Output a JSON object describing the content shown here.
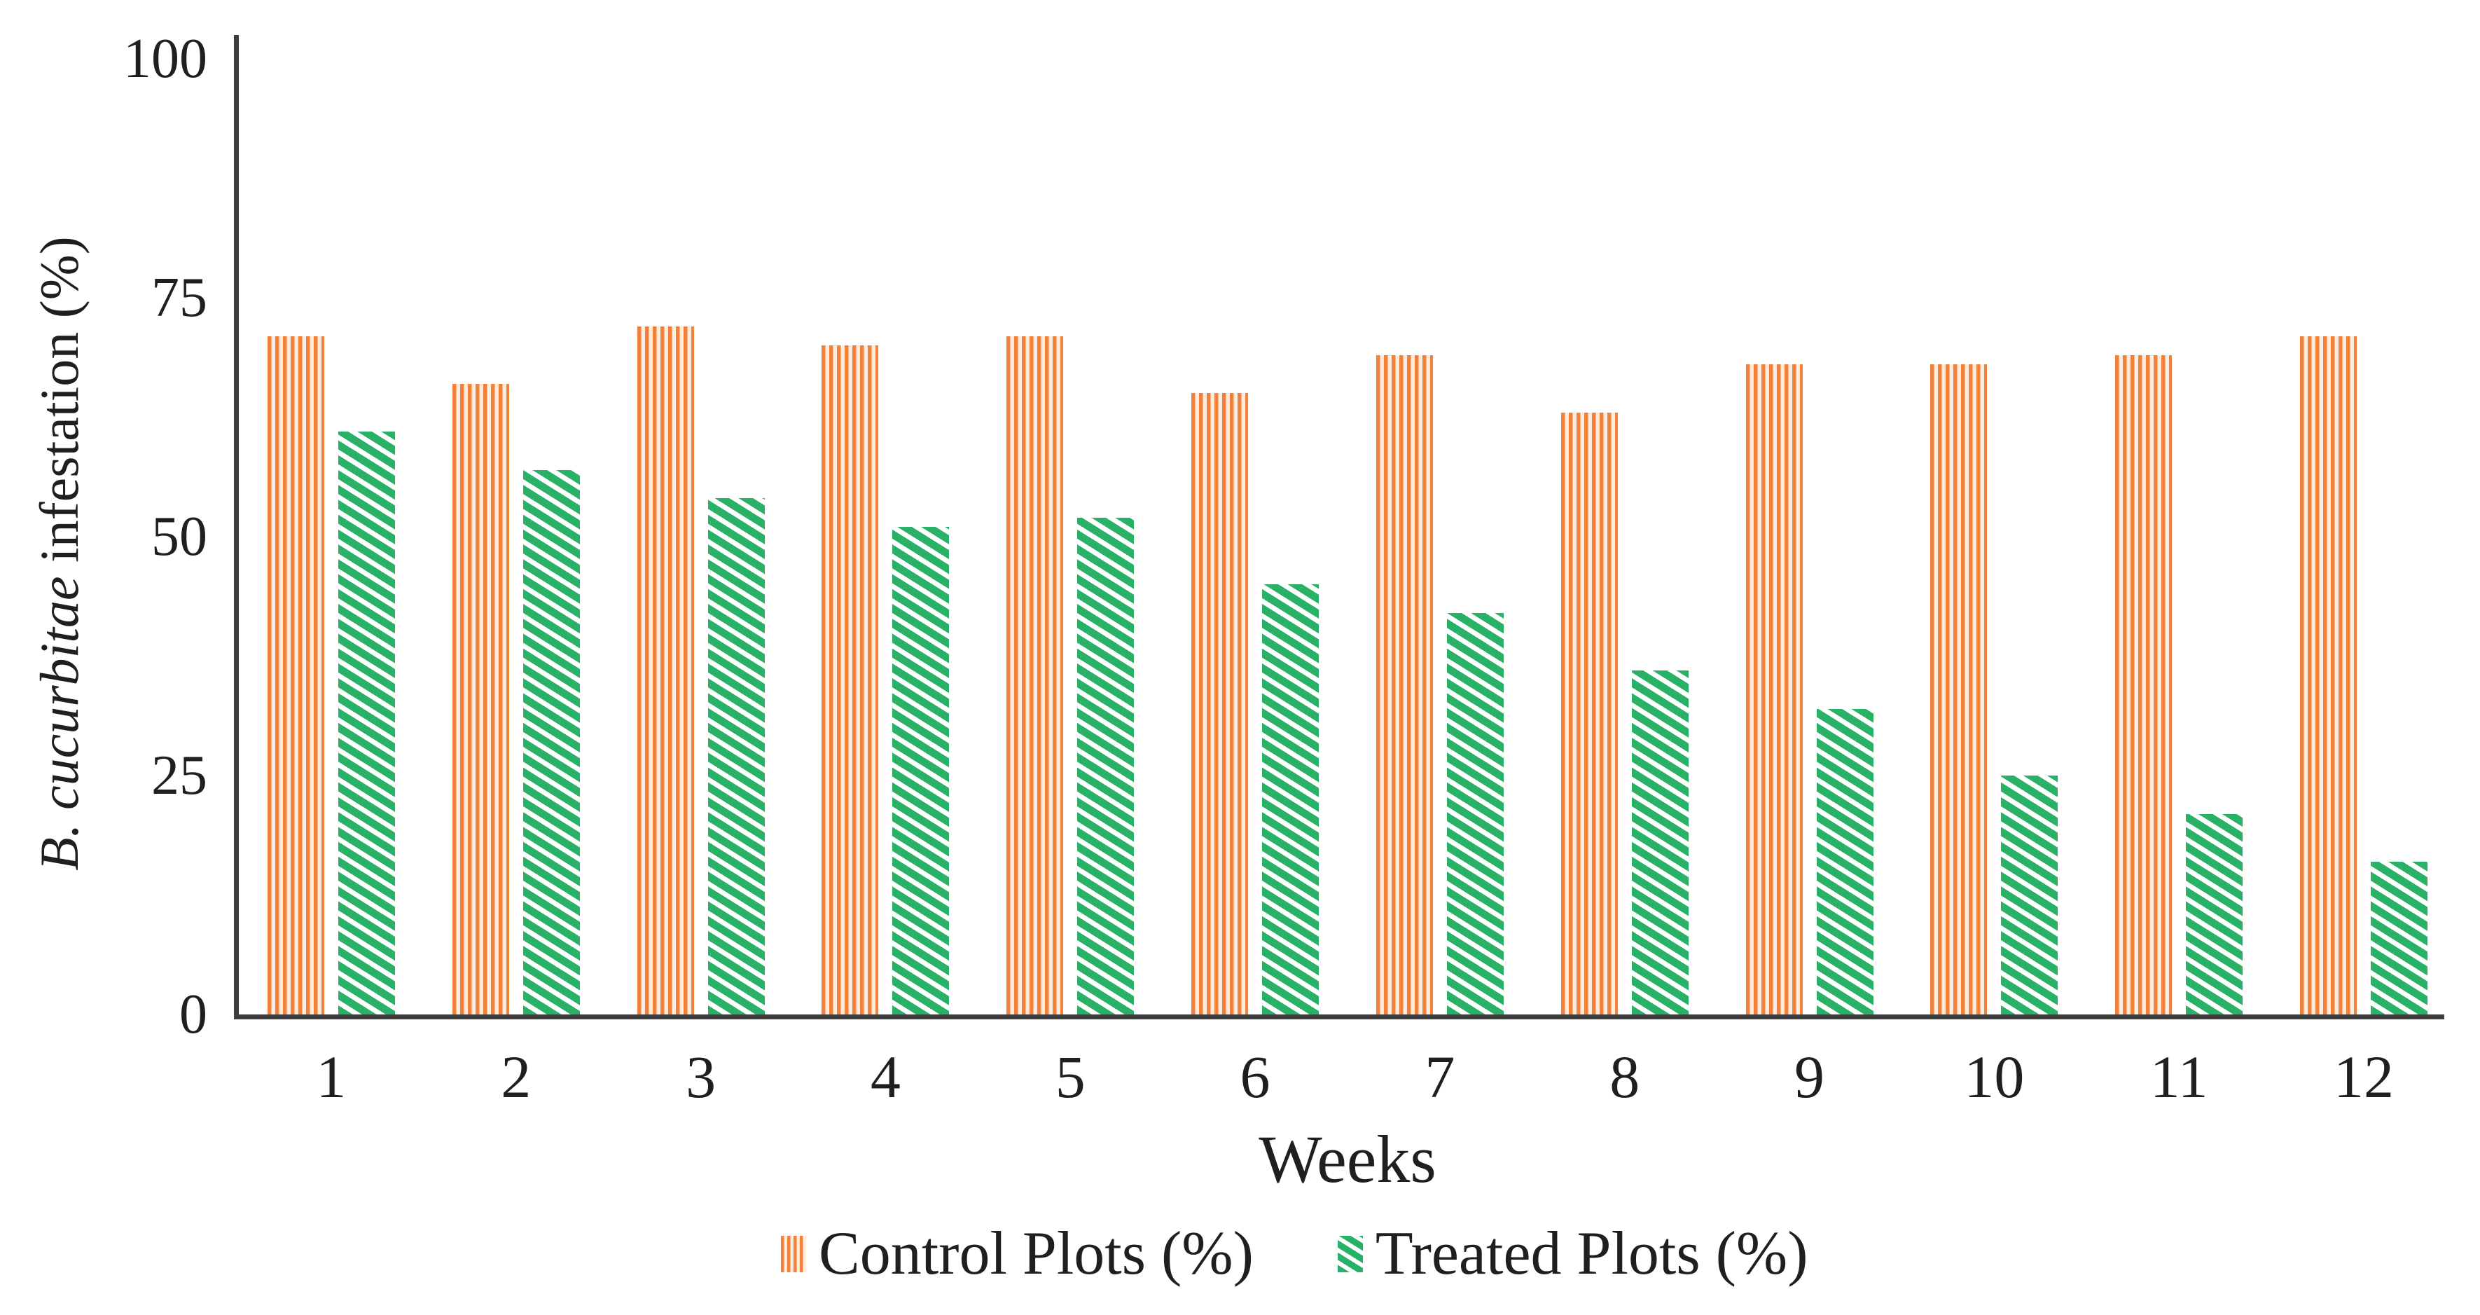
{
  "axes": {
    "x_title": "Weeks",
    "y_title_italic": "B. cucurbitae",
    "y_title_rest": " infestation (%)"
  },
  "legend": {
    "items": [
      {
        "label": "Control Plots (%)",
        "swatch": "orange-vertical-stripes",
        "color": "#f2813b"
      },
      {
        "label": "Treated Plots (%)",
        "swatch": "green-diagonal-stripes",
        "color": "#28b167"
      }
    ]
  },
  "colors": {
    "control_accent": "#f2813b",
    "control_gap": "#fdecdc",
    "treated_accent": "#28b167",
    "treated_gap": "#ffffff",
    "axis_line": "#3d3d3d",
    "text": "#1f1f1f"
  },
  "chart_data": {
    "type": "bar",
    "categories": [
      "1",
      "2",
      "3",
      "4",
      "5",
      "6",
      "7",
      "8",
      "9",
      "10",
      "11",
      "12"
    ],
    "series": [
      {
        "name": "Control Plots (%)",
        "values": [
          71,
          66,
          72,
          70,
          71,
          65,
          69,
          63,
          68,
          68,
          69,
          71
        ]
      },
      {
        "name": "Treated Plots (%)",
        "values": [
          61,
          57,
          54,
          51,
          52,
          45,
          42,
          36,
          32,
          25,
          21,
          16
        ]
      }
    ],
    "title": "",
    "xlabel": "Weeks",
    "ylabel": "B. cucurbitae infestation (%)",
    "ylim": [
      0,
      100
    ],
    "yticks": [
      100,
      75,
      50,
      25,
      0
    ],
    "grid": false,
    "legend_position": "bottom",
    "bar_patterns": [
      "vertical-stripes",
      "diagonal-stripes"
    ]
  }
}
